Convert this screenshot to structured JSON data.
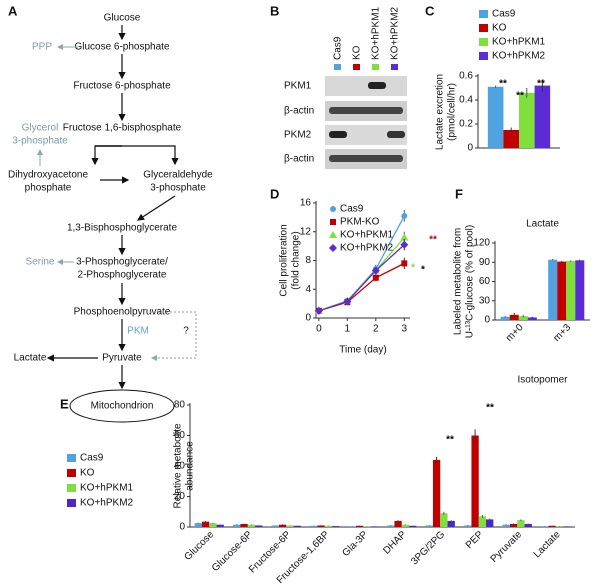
{
  "pathway": {
    "panel": "A",
    "nodes": [
      [
        "Glucose"
      ],
      [
        "PPP"
      ],
      [
        "Glucose 6-phosphate"
      ],
      [
        "Fructose 6-phosphate"
      ],
      [
        "Glycerol",
        "3-phosphate"
      ],
      [
        "Fructose 1,6-bisphosphate"
      ],
      [
        "Dihydroxyacetone",
        "phosphate"
      ],
      [
        "Glyceraldehyde",
        "3-phosphate"
      ],
      [
        "1,3-Bisphosphoglycerate"
      ],
      [
        "Serine"
      ],
      [
        "3-Phosphoglycerate/",
        "2-Phosphoglycerate"
      ],
      [
        "Phosphoenolpyruvate"
      ],
      [
        "PKM"
      ],
      [
        "?"
      ],
      [
        "Lactate"
      ],
      [
        "Pyruvate"
      ],
      [
        "Mitochondrion"
      ]
    ]
  },
  "blot": {
    "panel": "B",
    "lanes": [
      "Cas9",
      "KO",
      "KO+hPKM1",
      "KO+hPKM2"
    ],
    "rows": [
      "PKM1",
      "β-actin",
      "PKM2",
      "β-actin"
    ]
  },
  "chart_data": [
    {
      "type": "bar",
      "panel": "C",
      "categories": [
        null
      ],
      "ylabel": [
        "Lactate excretion",
        "(pmol/cell/hr)"
      ],
      "ylim": [
        0,
        0.6
      ],
      "yticks": [
        0,
        0.2,
        0.4,
        0.6
      ],
      "legend": "upper right",
      "series": [
        {
          "name": "Cas9",
          "color": "#4fa3e0",
          "values": [
            0.51
          ],
          "errors": [
            0.01
          ]
        },
        {
          "name": "KO",
          "color": "#c00000",
          "values": [
            0.15
          ],
          "errors": [
            0.02
          ]
        },
        {
          "name": "KO+hPKM1",
          "color": "#7fe03c",
          "values": [
            0.46
          ],
          "errors": [
            0.04
          ]
        },
        {
          "name": "KO+hPKM2",
          "color": "#5b2bd6",
          "values": [
            0.52
          ],
          "errors": [
            0.05
          ]
        }
      ],
      "annotations": [
        {
          "text": "**",
          "color": "#000000"
        },
        {
          "text": "**",
          "color": "#000000"
        },
        {
          "text": "**",
          "color": "#000000"
        }
      ]
    },
    {
      "type": "line",
      "panel": "D",
      "ylabel": [
        "Cell proliferation",
        "(fold change)"
      ],
      "xlabel": "Time (day)",
      "x": [
        0,
        1,
        2,
        3
      ],
      "xlim": [
        -0.1,
        3.2
      ],
      "xticks": [
        0,
        1,
        2,
        3
      ],
      "ylim": [
        0,
        16
      ],
      "yticks": [
        0,
        4,
        8,
        12,
        16
      ],
      "legend": "upper left",
      "series": [
        {
          "name": "Cas9",
          "color": "#4fa3e0",
          "marker": "circle",
          "values": [
            1,
            2.4,
            6.8,
            14.2
          ],
          "errors": [
            0.1,
            0.2,
            0.6,
            0.8
          ]
        },
        {
          "name": "PKM-KO",
          "color": "#c00000",
          "marker": "square",
          "values": [
            1,
            2.2,
            5.6,
            7.6
          ],
          "errors": [
            0.1,
            0.2,
            0.5,
            0.8
          ]
        },
        {
          "name": "KO+hPKM1",
          "color": "#7fe03c",
          "marker": "triangle",
          "values": [
            1,
            2.4,
            6.6,
            11.2
          ],
          "errors": [
            0.1,
            0.2,
            0.5,
            0.8
          ]
        },
        {
          "name": "KO+hPKM2",
          "color": "#5b2bd6",
          "marker": "diamond",
          "values": [
            1,
            2.3,
            6.6,
            10.2
          ],
          "errors": [
            0.1,
            0.2,
            0.5,
            0.8
          ]
        }
      ],
      "annotations": [
        {
          "text": "**",
          "color": "#c00000"
        },
        {
          "text": "*",
          "color": "#7fe03c"
        },
        {
          "text": "*",
          "color": "#000000"
        }
      ]
    },
    {
      "type": "bar",
      "panel": "F",
      "title": "Lactate",
      "categories": [
        "m+0",
        "m+3"
      ],
      "xlabel": "Isotopomer",
      "ylabel": [
        "Labeled metabolite from",
        "U-¹³C-glucose (% of pool)"
      ],
      "ylim": [
        0,
        120
      ],
      "yticks": [
        0,
        30,
        60,
        90,
        120
      ],
      "series": [
        {
          "name": "Cas9",
          "color": "#4fa3e0",
          "values": [
            5,
            94
          ],
          "errors": [
            1,
            1
          ]
        },
        {
          "name": "KO",
          "color": "#c00000",
          "values": [
            8,
            91
          ],
          "errors": [
            3,
            1
          ]
        },
        {
          "name": "KO+hPKM1",
          "color": "#7fe03c",
          "values": [
            6,
            92
          ],
          "errors": [
            2,
            1
          ]
        },
        {
          "name": "KO+hPKM2",
          "color": "#5b2bd6",
          "values": [
            4,
            93
          ],
          "errors": [
            1,
            1
          ]
        }
      ]
    },
    {
      "type": "bar",
      "panel": "E",
      "ylabel": [
        "Relative metabolite",
        "abundance"
      ],
      "ylim": [
        0,
        80
      ],
      "yticks": [
        0,
        20,
        40,
        60,
        80
      ],
      "legend": "left",
      "categories": [
        "Glucose",
        "Glucose-6P",
        "Fructose-6P",
        "Fructose-1,6BP",
        "Gla-3P",
        "DHAP",
        "3PG/2PG",
        "PEP",
        "Pyruvate",
        "Lactate"
      ],
      "series": [
        {
          "name": "Cas9",
          "color": "#4fa3e0",
          "values": [
            2.5,
            1.5,
            1,
            0.8,
            0.5,
            1,
            1,
            1,
            1.5,
            0.5
          ],
          "errors": [
            0.3,
            0.2,
            0.1,
            0.1,
            0.1,
            0.2,
            0.2,
            0.2,
            0.2,
            0.1
          ]
        },
        {
          "name": "KO",
          "color": "#c00000",
          "values": [
            3.5,
            2,
            1.5,
            1,
            0.8,
            4,
            44,
            60,
            2,
            0.8
          ],
          "errors": [
            0.3,
            0.2,
            0.2,
            0.1,
            0.1,
            0.4,
            2,
            4,
            0.3,
            0.1
          ]
        },
        {
          "name": "KO+hPKM1",
          "color": "#7fe03c",
          "values": [
            2.5,
            1.5,
            1,
            0.8,
            0.5,
            1.5,
            9,
            7,
            4.5,
            0.6
          ],
          "errors": [
            0.3,
            0.2,
            0.1,
            0.1,
            0.1,
            0.2,
            1,
            1,
            0.5,
            0.1
          ]
        },
        {
          "name": "KO+hPKM2",
          "color": "#4b27c9",
          "values": [
            1.5,
            1,
            0.8,
            0.6,
            0.4,
            0.8,
            4,
            5,
            2,
            0.4
          ],
          "errors": [
            0.2,
            0.1,
            0.1,
            0.1,
            0.1,
            0.1,
            0.5,
            0.6,
            0.3,
            0.1
          ]
        }
      ],
      "annotations": [
        {
          "text": "**",
          "color": "#000000"
        },
        {
          "text": "**",
          "color": "#000000"
        }
      ]
    }
  ]
}
